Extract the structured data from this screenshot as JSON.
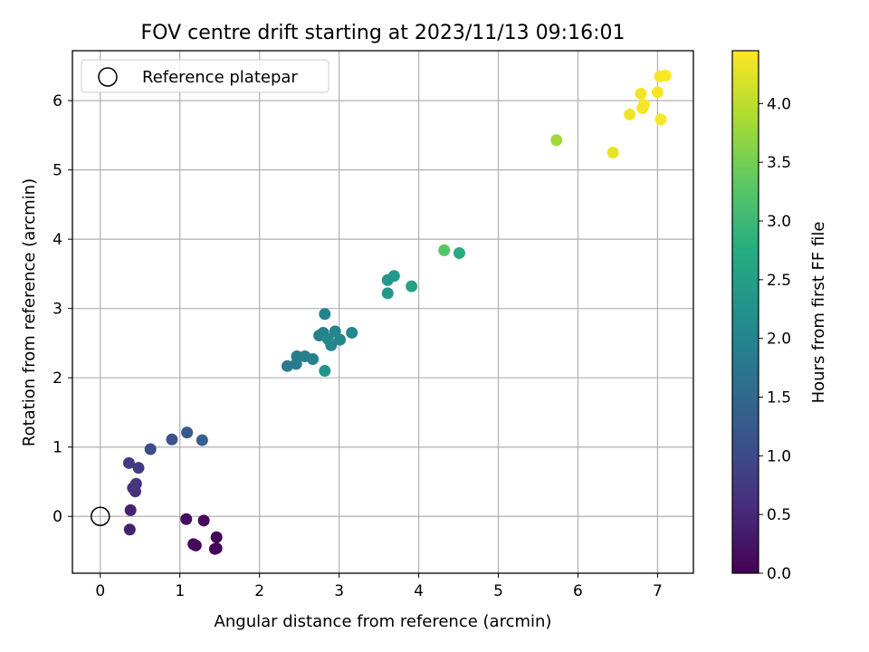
{
  "chart_data": {
    "type": "scatter",
    "title": "FOV centre drift starting at 2023/11/13 09:16:01",
    "xlabel": "Angular distance from reference (arcmin)",
    "ylabel": "Rotation from reference (arcmin)",
    "xlim": [
      -0.35,
      7.45
    ],
    "ylim": [
      -0.82,
      6.72
    ],
    "xticks": [
      0,
      1,
      2,
      3,
      4,
      5,
      6,
      7
    ],
    "yticks": [
      0,
      1,
      2,
      3,
      4,
      5,
      6
    ],
    "grid": true,
    "legend": {
      "placement": "top-left",
      "entries": [
        "Reference platepar"
      ]
    },
    "reference_point": {
      "x": 0,
      "y": 0,
      "marker": "open-circle"
    },
    "colorbar": {
      "label": "Hours from first FF file",
      "colormap": "viridis",
      "range": [
        0,
        4.45
      ],
      "ticks": [
        "0.0",
        "0.5",
        "1.0",
        "1.5",
        "2.0",
        "2.5",
        "3.0",
        "3.5",
        "4.0"
      ]
    },
    "series": [
      {
        "x": [
          1.46,
          1.44,
          1.46,
          1.2,
          1.17,
          1.3,
          1.08,
          0.37,
          0.38,
          0.44,
          0.41,
          0.45,
          0.36,
          0.48,
          0.63,
          0.9,
          1.09,
          1.28,
          2.35,
          2.46,
          2.47,
          2.57,
          2.67,
          2.75,
          2.8,
          2.82,
          2.9,
          2.95,
          3.01,
          3.16,
          2.86,
          2.82,
          3.61,
          3.61,
          3.69,
          3.91,
          4.32,
          4.51,
          5.73,
          6.44,
          6.65,
          6.79,
          6.81,
          6.83,
          7.0,
          7.04,
          7.03,
          7.1
        ],
        "y": [
          -0.46,
          -0.47,
          -0.3,
          -0.42,
          -0.4,
          -0.06,
          -0.04,
          -0.19,
          0.09,
          0.36,
          0.41,
          0.47,
          0.77,
          0.7,
          0.97,
          1.11,
          1.21,
          1.1,
          2.17,
          2.2,
          2.31,
          2.31,
          2.27,
          2.61,
          2.65,
          2.92,
          2.47,
          2.67,
          2.55,
          2.65,
          2.56,
          2.1,
          3.41,
          3.22,
          3.47,
          3.32,
          3.84,
          3.8,
          5.43,
          5.25,
          5.8,
          6.1,
          5.89,
          5.94,
          6.12,
          5.73,
          6.35,
          6.36
        ],
        "c": [
          0.02,
          0.03,
          0.05,
          0.08,
          0.1,
          0.13,
          0.17,
          0.4,
          0.43,
          0.6,
          0.65,
          0.7,
          0.8,
          0.8,
          1.03,
          1.13,
          1.23,
          1.33,
          1.83,
          1.85,
          1.87,
          1.88,
          1.9,
          1.93,
          1.95,
          1.97,
          2.0,
          2.02,
          2.03,
          2.05,
          2.07,
          2.3,
          2.33,
          2.35,
          2.37,
          2.55,
          3.25,
          2.72,
          3.8,
          4.3,
          4.35,
          4.37,
          4.38,
          4.4,
          4.4,
          4.42,
          4.42,
          4.43
        ]
      }
    ]
  }
}
